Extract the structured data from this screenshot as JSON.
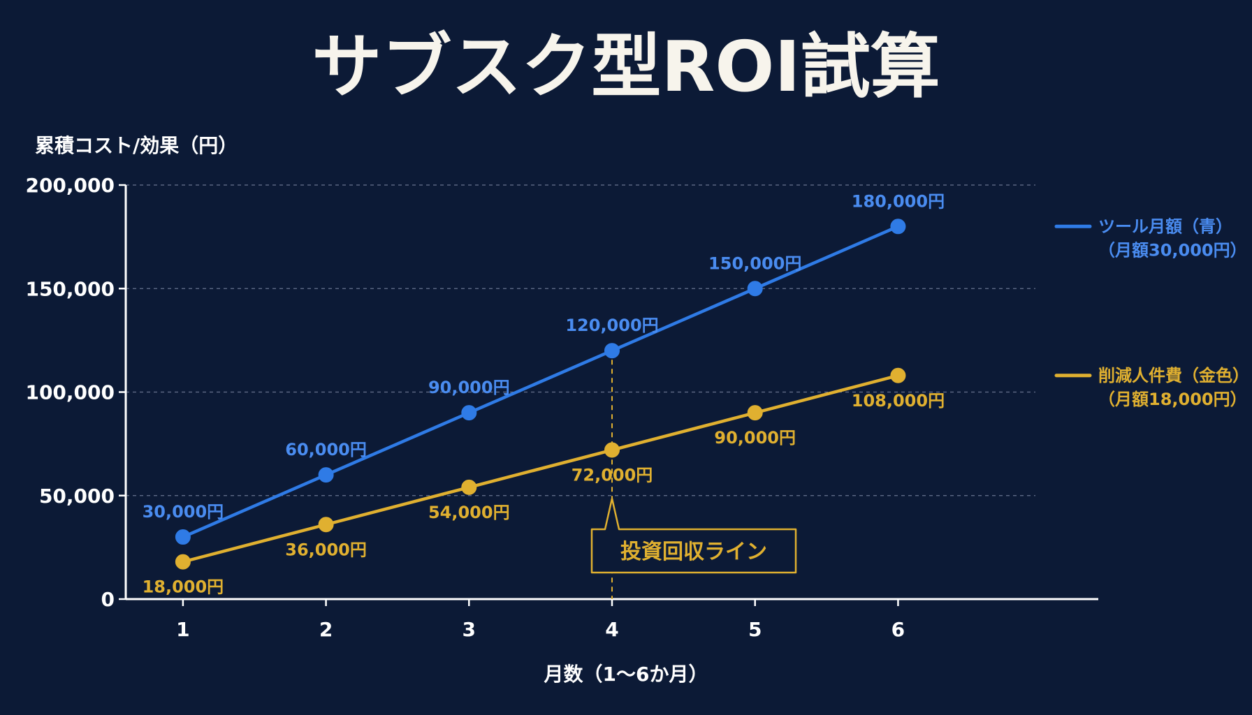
{
  "colors": {
    "background": "#0c1a36",
    "tool_series": "#2f7be6",
    "tool_label": "#4a8cf0",
    "savings_series": "#e0b030",
    "axis": "#ffffff",
    "grid": "#7f8aa6"
  },
  "chart_data": {
    "type": "line",
    "title": "サブスク型ROI試算",
    "ylabel": "累積コスト/効果（円）",
    "xlabel": "月数（1〜6か月）",
    "x": [
      1,
      2,
      3,
      4,
      5,
      6
    ],
    "xlim": [
      0.6,
      7.4
    ],
    "ylim": [
      0,
      200000
    ],
    "yticks": [
      0,
      50000,
      100000,
      150000,
      200000
    ],
    "ytick_labels": [
      "0",
      "50,000",
      "100,000",
      "150,000",
      "200,000"
    ],
    "xtick_labels": [
      "1",
      "2",
      "3",
      "4",
      "5",
      "6"
    ],
    "grid": true,
    "legend_position": "right",
    "series": [
      {
        "name": "ツール月額（青）",
        "legend_sub": "（月額30,000円）",
        "color": "#2f7be6",
        "label_color": "#4a8cf0",
        "label_position": "above",
        "values": [
          30000,
          60000,
          90000,
          120000,
          150000,
          180000
        ],
        "labels": [
          "30,000円",
          "60,000円",
          "90,000円",
          "120,000円",
          "150,000円",
          "180,000円"
        ]
      },
      {
        "name": "削減人件費（金色）",
        "legend_sub": "（月額18,000円）",
        "color": "#e0b030",
        "label_color": "#e0b030",
        "label_position": "below",
        "values": [
          18000,
          36000,
          54000,
          72000,
          90000,
          108000
        ],
        "labels": [
          "18,000円",
          "36,000円",
          "54,000円",
          "72,000円",
          "90,000円",
          "108,000円"
        ]
      }
    ],
    "annotation": {
      "text": "投資回収ライン",
      "x": 4
    }
  }
}
